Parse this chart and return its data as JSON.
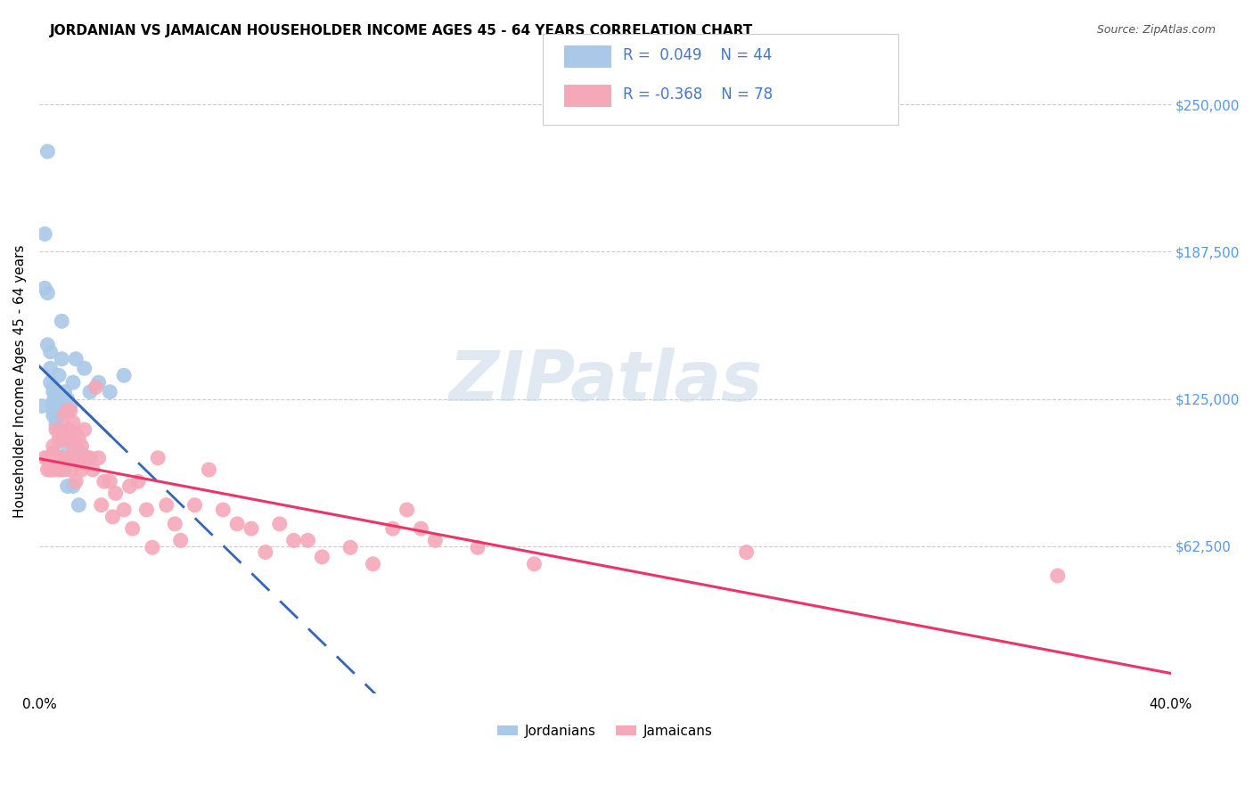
{
  "title": "JORDANIAN VS JAMAICAN HOUSEHOLDER INCOME AGES 45 - 64 YEARS CORRELATION CHART",
  "source": "Source: ZipAtlas.com",
  "ylabel": "Householder Income Ages 45 - 64 years",
  "y_ticks": [
    0,
    62500,
    125000,
    187500,
    250000
  ],
  "y_tick_labels": [
    "",
    "$62,500",
    "$125,000",
    "$187,500",
    "$250,000"
  ],
  "x_min": 0.0,
  "x_max": 0.4,
  "y_min": 0,
  "y_max": 265000,
  "jordanian_R": 0.049,
  "jordanian_N": 44,
  "jamaican_R": -0.368,
  "jamaican_N": 78,
  "jordanian_color": "#aac8e8",
  "jamaican_color": "#f5a8b8",
  "jordanian_line_color": "#3366bb",
  "jamaican_line_color": "#ee3366",
  "background_color": "#ffffff",
  "grid_color": "#cccccc",
  "watermark": "ZIPatlas",
  "jordanians_x": [
    0.001,
    0.002,
    0.002,
    0.003,
    0.003,
    0.003,
    0.004,
    0.004,
    0.004,
    0.005,
    0.005,
    0.005,
    0.005,
    0.005,
    0.005,
    0.006,
    0.006,
    0.006,
    0.006,
    0.006,
    0.007,
    0.007,
    0.007,
    0.007,
    0.008,
    0.008,
    0.008,
    0.008,
    0.009,
    0.009,
    0.01,
    0.01,
    0.01,
    0.011,
    0.012,
    0.012,
    0.013,
    0.014,
    0.015,
    0.016,
    0.018,
    0.021,
    0.025,
    0.03
  ],
  "jordanians_y": [
    122000,
    195000,
    172000,
    230000,
    170000,
    148000,
    145000,
    138000,
    132000,
    130000,
    128000,
    124000,
    122000,
    120000,
    118000,
    125000,
    122000,
    118000,
    116000,
    114000,
    135000,
    125000,
    118000,
    112000,
    158000,
    142000,
    120000,
    100000,
    128000,
    95000,
    105000,
    88000,
    125000,
    122000,
    132000,
    88000,
    142000,
    80000,
    102000,
    138000,
    128000,
    132000,
    128000,
    135000
  ],
  "jamaicans_x": [
    0.002,
    0.003,
    0.003,
    0.004,
    0.004,
    0.005,
    0.005,
    0.005,
    0.005,
    0.006,
    0.006,
    0.006,
    0.007,
    0.007,
    0.007,
    0.008,
    0.008,
    0.008,
    0.009,
    0.009,
    0.009,
    0.01,
    0.01,
    0.01,
    0.011,
    0.011,
    0.011,
    0.012,
    0.012,
    0.013,
    0.013,
    0.013,
    0.014,
    0.014,
    0.015,
    0.015,
    0.016,
    0.016,
    0.017,
    0.018,
    0.019,
    0.02,
    0.021,
    0.022,
    0.023,
    0.025,
    0.026,
    0.027,
    0.03,
    0.032,
    0.033,
    0.035,
    0.038,
    0.04,
    0.042,
    0.045,
    0.048,
    0.05,
    0.055,
    0.06,
    0.065,
    0.07,
    0.075,
    0.08,
    0.085,
    0.09,
    0.095,
    0.1,
    0.11,
    0.118,
    0.125,
    0.13,
    0.135,
    0.14,
    0.155,
    0.175,
    0.25,
    0.36
  ],
  "jamaicans_y": [
    100000,
    100000,
    95000,
    100000,
    95000,
    102000,
    98000,
    105000,
    95000,
    100000,
    96000,
    112000,
    108000,
    100000,
    95000,
    110000,
    100000,
    95000,
    118000,
    108000,
    98000,
    120000,
    112000,
    100000,
    120000,
    112000,
    95000,
    115000,
    105000,
    110000,
    100000,
    90000,
    108000,
    98000,
    105000,
    95000,
    112000,
    98000,
    100000,
    100000,
    95000,
    130000,
    100000,
    80000,
    90000,
    90000,
    75000,
    85000,
    78000,
    88000,
    70000,
    90000,
    78000,
    62000,
    100000,
    80000,
    72000,
    65000,
    80000,
    95000,
    78000,
    72000,
    70000,
    60000,
    72000,
    65000,
    65000,
    58000,
    62000,
    55000,
    70000,
    78000,
    70000,
    65000,
    62000,
    55000,
    60000,
    50000
  ]
}
